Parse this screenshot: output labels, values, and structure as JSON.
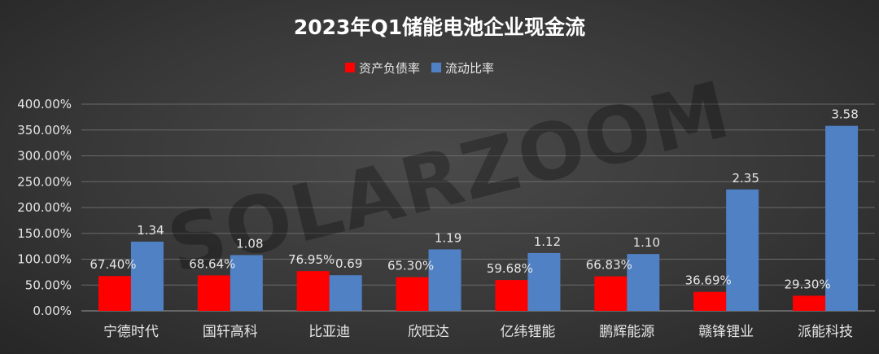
{
  "chart_data": {
    "type": "bar",
    "title": "2023年Q1储能电池企业现金流",
    "watermark": "SOLARZOOM",
    "categories": [
      "宁德时代",
      "国轩高科",
      "比亚迪",
      "欣旺达",
      "亿纬锂能",
      "鹏辉能源",
      "赣锋锂业",
      "派能科技"
    ],
    "series": [
      {
        "name": "资产负债率",
        "color": "#ff0000",
        "values": [
          67.4,
          68.64,
          76.95,
          65.3,
          59.68,
          66.83,
          36.69,
          29.3
        ],
        "labels": [
          "67.40%",
          "68.64%",
          "76.95%",
          "65.30%",
          "59.68%",
          "66.83%",
          "36.69%",
          "29.30%"
        ]
      },
      {
        "name": "流动比率",
        "color": "#4f81c4",
        "values": [
          134,
          108,
          69,
          119,
          112,
          110,
          235,
          358
        ],
        "labels": [
          "1.34",
          "1.08",
          "0.69",
          "1.19",
          "1.12",
          "1.10",
          "2.35",
          "3.58"
        ]
      }
    ],
    "yticks": [
      "0.00%",
      "50.00%",
      "100.00%",
      "150.00%",
      "200.00%",
      "250.00%",
      "300.00%",
      "350.00%",
      "400.00%"
    ],
    "ylim": [
      0,
      400
    ],
    "grid": true,
    "legend_position": "top"
  }
}
